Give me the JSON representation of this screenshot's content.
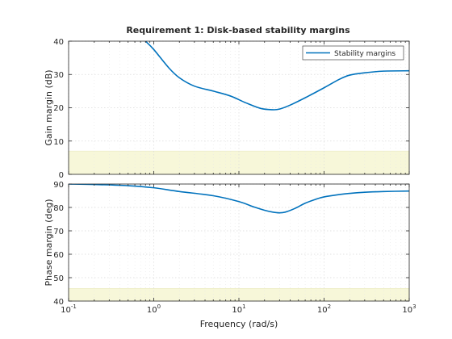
{
  "chart_data": {
    "type": "line",
    "title": "Requirement 1: Disk-based stability margins",
    "xlabel": "Frequency (rad/s)",
    "xscale": "log",
    "xlim": [
      0.1,
      1000
    ],
    "x_tick_labels": [
      {
        "base": "10",
        "exp": "-1"
      },
      {
        "base": "10",
        "exp": "0"
      },
      {
        "base": "10",
        "exp": "1"
      },
      {
        "base": "10",
        "exp": "2"
      },
      {
        "base": "10",
        "exp": "3"
      }
    ],
    "grid": true,
    "legend": {
      "placement": "top-right",
      "entries": [
        "Stability margins"
      ]
    },
    "colors": {
      "series": "#0072bd",
      "infeasible_region": "#f7f7d9",
      "infeasible_edge": "#e6e6b8"
    },
    "panels": [
      {
        "ylabel": "Gain margin (dB)",
        "ylim": [
          0,
          40
        ],
        "yticks": [
          "0",
          "10",
          "20",
          "30",
          "40"
        ],
        "infeasible_region": [
          0,
          7
        ],
        "series": [
          {
            "name": "Stability margins",
            "x": [
              0.8,
              1,
              1.5,
              2,
              3,
              5,
              8,
              12,
              18,
              25,
              30,
              40,
              60,
              100,
              150,
              200,
              300,
              500,
              1000
            ],
            "y": [
              40,
              37.5,
              32,
              29,
              26.5,
              25,
              23.5,
              21.5,
              19.8,
              19.4,
              19.6,
              20.8,
              23,
              26,
              28.5,
              29.8,
              30.5,
              31,
              31.1
            ]
          }
        ]
      },
      {
        "ylabel": "Phase margin (deg)",
        "ylim": [
          40,
          90
        ],
        "yticks": [
          "40",
          "50",
          "60",
          "70",
          "80",
          "90"
        ],
        "infeasible_region": [
          40,
          45.4
        ],
        "series": [
          {
            "name": "Stability margins",
            "x": [
              0.1,
              0.2,
              0.5,
              1,
              2,
              5,
              10,
              15,
              20,
              25,
              30,
              35,
              45,
              60,
              80,
              100,
              150,
              200,
              300,
              500,
              1000
            ],
            "y": [
              90,
              89.8,
              89.3,
              88.4,
              86.8,
              85,
              82.5,
              80.2,
              78.8,
              78,
              77.7,
              78,
              79.5,
              81.8,
              83.5,
              84.5,
              85.5,
              86,
              86.5,
              86.8,
              87
            ]
          }
        ]
      }
    ]
  }
}
